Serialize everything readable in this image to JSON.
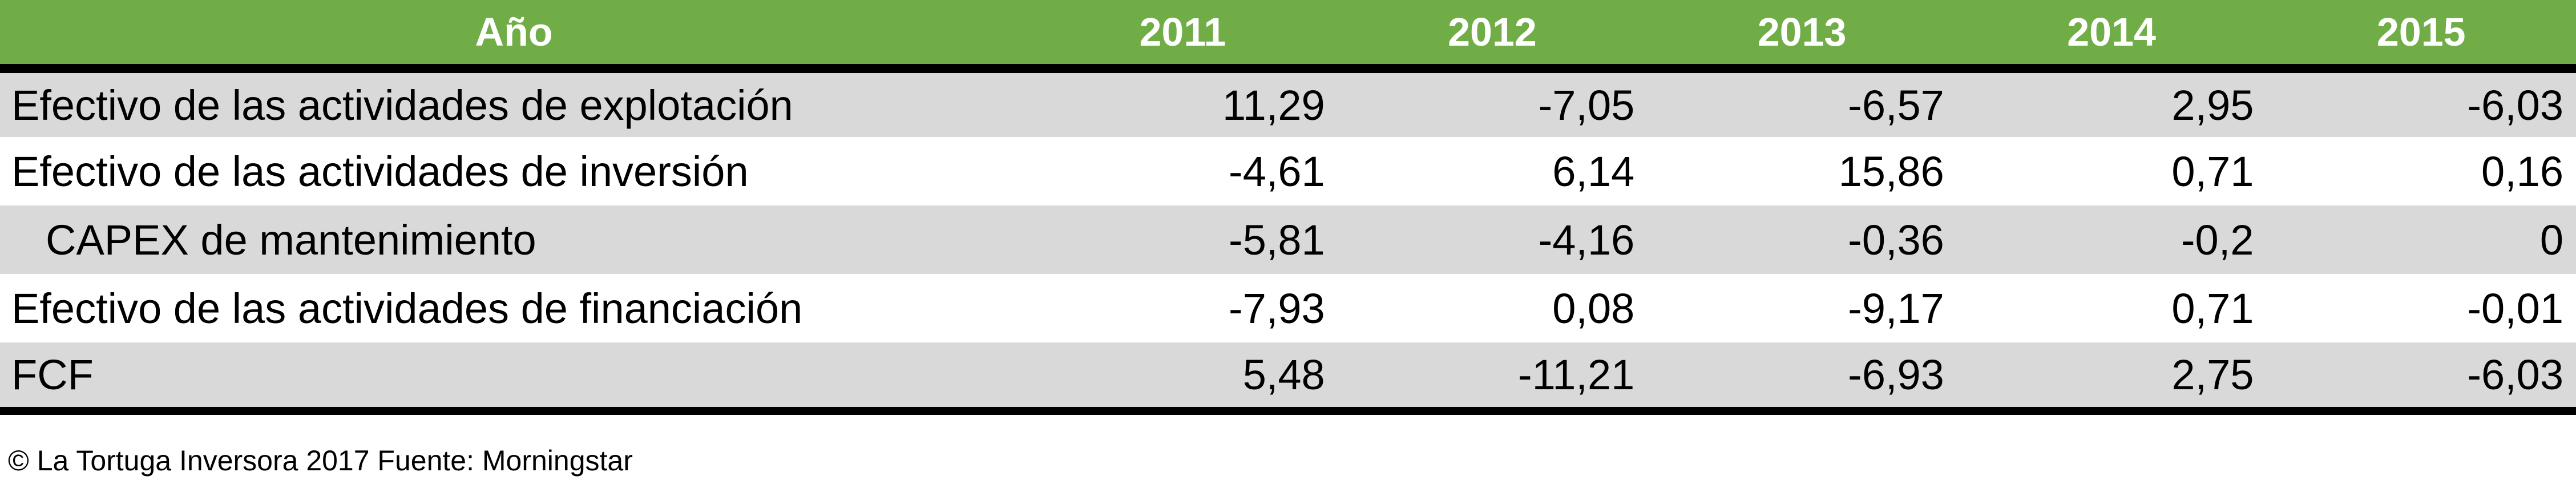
{
  "chart_data": {
    "type": "table",
    "columns": [
      "Año",
      "2011",
      "2012",
      "2013",
      "2014",
      "2015"
    ],
    "rows": [
      {
        "label": "Efectivo de las actividades de explotación",
        "values": [
          "11,29",
          "-7,05",
          "-6,57",
          "2,95",
          "-6,03"
        ],
        "shaded": true,
        "indent": false
      },
      {
        "label": "Efectivo de las actividades de inversión",
        "values": [
          "-4,61",
          "6,14",
          "15,86",
          "0,71",
          "0,16"
        ],
        "shaded": false,
        "indent": false
      },
      {
        "label": "CAPEX de mantenimiento",
        "values": [
          "-5,81",
          "-4,16",
          "-0,36",
          "-0,2",
          "0"
        ],
        "shaded": true,
        "indent": true
      },
      {
        "label": "Efectivo de las actividades de financiación",
        "values": [
          "-7,93",
          "0,08",
          "-9,17",
          "0,71",
          "-0,01"
        ],
        "shaded": false,
        "indent": false
      },
      {
        "label": "FCF",
        "values": [
          "5,48",
          "-11,21",
          "-6,93",
          "2,75",
          "-6,03"
        ],
        "shaded": true,
        "indent": false
      }
    ]
  },
  "colors": {
    "header_bg": "#70ad47",
    "header_text": "#ffffff",
    "shaded_row": "#d9d9d9",
    "rule": "#000000"
  },
  "footnote": "© La Tortuga Inversora 2017 Fuente: Morningstar"
}
